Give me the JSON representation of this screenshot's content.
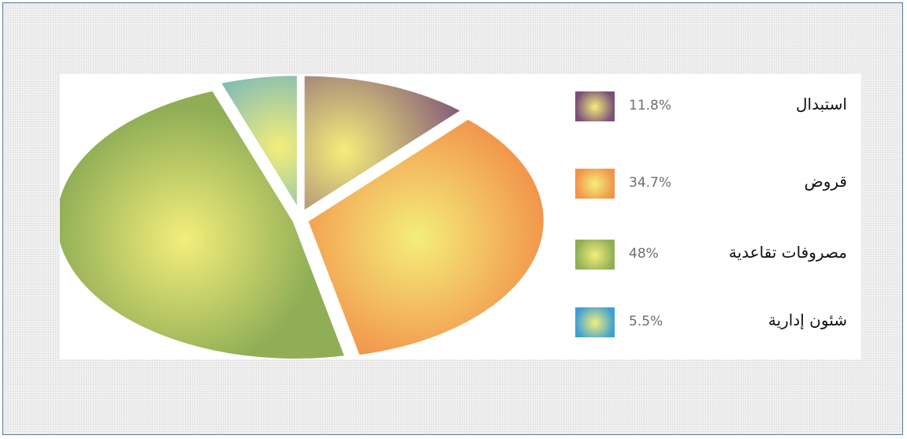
{
  "chart_data": {
    "type": "pie",
    "title": "",
    "slices": [
      {
        "label": "استبدال",
        "value": 11.8,
        "value_label": "11.8%",
        "color": "#7a4f78"
      },
      {
        "label": "قروض",
        "value": 34.7,
        "value_label": "34.7%",
        "color": "#f2934a"
      },
      {
        "label": "مصروفات تقاعدية",
        "value": 48,
        "value_label": "48%",
        "color": "#8fae56"
      },
      {
        "label": "شئون إدارية",
        "value": 5.5,
        "value_label": "5.5%",
        "color": "#3f9fd5"
      }
    ],
    "highlight_color": "#f4ee7a",
    "legend_position": "right",
    "exploded": true
  }
}
